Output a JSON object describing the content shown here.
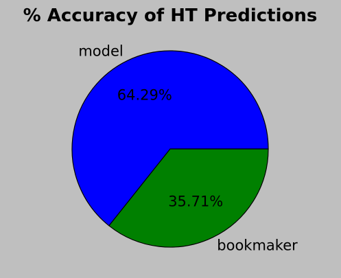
{
  "chart_data": {
    "type": "pie",
    "title": "% Accuracy of HT Predictions",
    "slices": [
      {
        "label": "model",
        "value": 64.29,
        "pct_label": "64.29%",
        "color": "#0000ff"
      },
      {
        "label": "bookmaker",
        "value": 35.71,
        "pct_label": "35.71%",
        "color": "#008000"
      }
    ],
    "background": "#bfbfbf"
  }
}
